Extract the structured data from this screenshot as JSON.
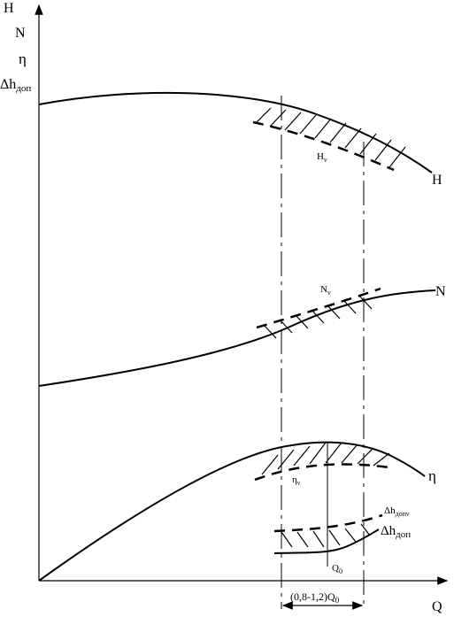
{
  "axes": {
    "y_labels": [
      "H",
      "N",
      "η"
    ],
    "y_label_dh_main": "Δh",
    "y_label_dh_sub": "доп",
    "x_label": "Q"
  },
  "curves": {
    "H": {
      "label": "H",
      "band_label_main": "H",
      "band_label_sub": "ν"
    },
    "N": {
      "label": "N",
      "band_label_main": "N",
      "band_label_sub": "ν"
    },
    "eta": {
      "label": "η",
      "band_label_main": "η",
      "band_label_sub": "ν"
    },
    "dh": {
      "label_main": "Δh",
      "label_sub": "доп",
      "band_label_main": "Δh",
      "band_label_sub": "допν"
    }
  },
  "markers": {
    "q0_main": "Q",
    "q0_sub": "0",
    "range_prefix": "(0,8-1,2)Q",
    "range_sub": "0"
  }
}
